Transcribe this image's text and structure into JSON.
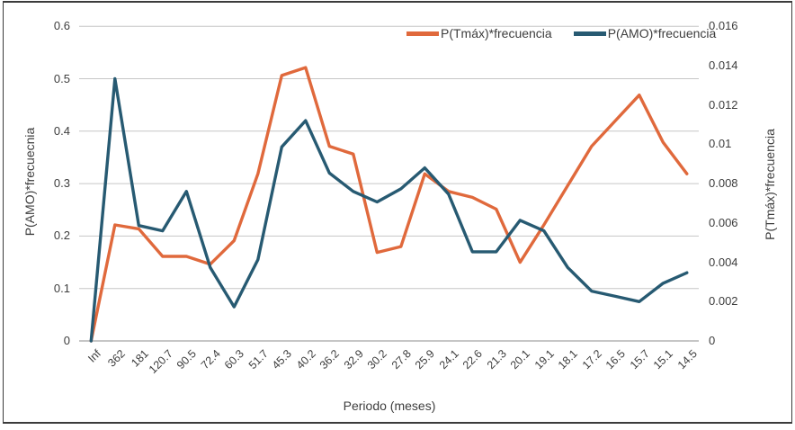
{
  "chart_data": {
    "type": "line",
    "categories": [
      "Inf",
      "362",
      "181",
      "120.7",
      "90.5",
      "72.4",
      "60.3",
      "51.7",
      "45.3",
      "40.2",
      "36.2",
      "32.9",
      "30.2",
      "27.8",
      "25.9",
      "24.1",
      "22.6",
      "21.3",
      "20.1",
      "19.1",
      "18.1",
      "17.2",
      "16.5",
      "15.7",
      "15.1",
      "14.5"
    ],
    "series": [
      {
        "name": "P(Tmáx)*frecuencia",
        "axis": "right",
        "color": "#E0693C",
        "values": [
          0,
          0.0059,
          0.0057,
          0.0043,
          0.0043,
          0.0039,
          0.0051,
          0.0085,
          0.0135,
          0.0139,
          0.0099,
          0.0095,
          0.0045,
          0.0048,
          0.0085,
          0.0076,
          0.0073,
          0.0067,
          0.004,
          0.0059,
          0.0079,
          0.0099,
          0.0112,
          0.0125,
          0.0101,
          0.0085
        ]
      },
      {
        "name": "P(AMO)*frecuencia",
        "axis": "left",
        "color": "#275A72",
        "values": [
          0,
          0.5,
          0.22,
          0.21,
          0.285,
          0.14,
          0.065,
          0.155,
          0.37,
          0.42,
          0.32,
          0.285,
          0.265,
          0.29,
          0.33,
          0.28,
          0.17,
          0.17,
          0.23,
          0.21,
          0.14,
          0.095,
          0.085,
          0.075,
          0.11,
          0.13
        ]
      }
    ],
    "xlabel": "Periodo (meses)",
    "left_axis": {
      "label": "P(AMO)*frecuecnia",
      "min": 0,
      "max": 0.6,
      "ticks": [
        "0",
        "0.1",
        "0.2",
        "0.3",
        "0.4",
        "0.5",
        "0.6"
      ]
    },
    "right_axis": {
      "label": "P(Tmáx)*frecuencia",
      "min": 0,
      "max": 0.016,
      "ticks": [
        "0",
        "0.002",
        "0.004",
        "0.006",
        "0.008",
        "0.01",
        "0.012",
        "0.014",
        "0.016"
      ]
    },
    "grid": true,
    "legend_position": "top-right"
  },
  "colors": {
    "gridline": "#c6c6c6",
    "axis_line": "#8c8c8c",
    "text": "#3d3d3d",
    "frame": "#3b3b3b",
    "background": "#ffffff"
  }
}
